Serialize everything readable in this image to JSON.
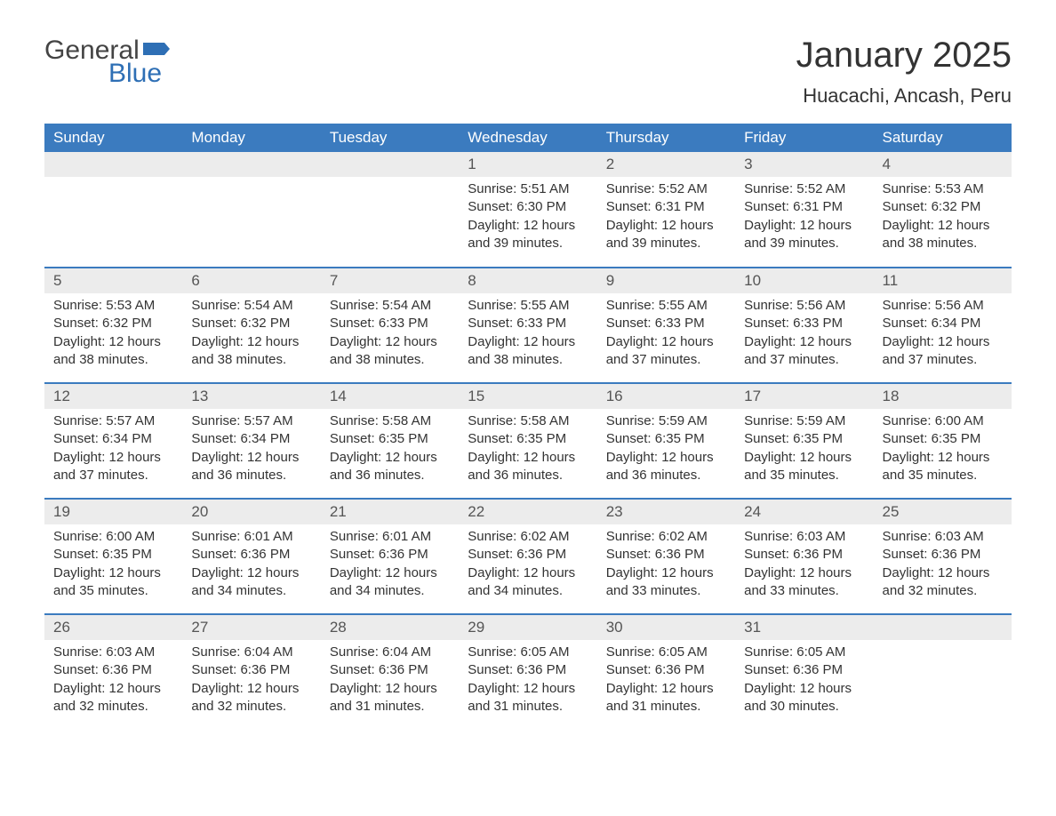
{
  "logo": {
    "text1": "General",
    "text2": "Blue",
    "flag_color": "#2e6fb5"
  },
  "title": {
    "month": "January 2025",
    "location": "Huacachi, Ancash, Peru"
  },
  "colors": {
    "header_bg": "#3b7bbf",
    "header_text": "#ffffff",
    "daynum_bg": "#ececec",
    "row_border": "#3b7bbf",
    "body_text": "#333333",
    "logo_gray": "#444444",
    "logo_blue": "#2e6fb5"
  },
  "typography": {
    "title_fontsize": 40,
    "location_fontsize": 22,
    "weekday_fontsize": 17,
    "daynum_fontsize": 17,
    "body_fontsize": 15
  },
  "weekdays": [
    "Sunday",
    "Monday",
    "Tuesday",
    "Wednesday",
    "Thursday",
    "Friday",
    "Saturday"
  ],
  "labels": {
    "sunrise": "Sunrise:",
    "sunset": "Sunset:",
    "daylight": "Daylight:"
  },
  "weeks": [
    [
      null,
      null,
      null,
      {
        "n": "1",
        "sunrise": "5:51 AM",
        "sunset": "6:30 PM",
        "daylight": "12 hours and 39 minutes."
      },
      {
        "n": "2",
        "sunrise": "5:52 AM",
        "sunset": "6:31 PM",
        "daylight": "12 hours and 39 minutes."
      },
      {
        "n": "3",
        "sunrise": "5:52 AM",
        "sunset": "6:31 PM",
        "daylight": "12 hours and 39 minutes."
      },
      {
        "n": "4",
        "sunrise": "5:53 AM",
        "sunset": "6:32 PM",
        "daylight": "12 hours and 38 minutes."
      }
    ],
    [
      {
        "n": "5",
        "sunrise": "5:53 AM",
        "sunset": "6:32 PM",
        "daylight": "12 hours and 38 minutes."
      },
      {
        "n": "6",
        "sunrise": "5:54 AM",
        "sunset": "6:32 PM",
        "daylight": "12 hours and 38 minutes."
      },
      {
        "n": "7",
        "sunrise": "5:54 AM",
        "sunset": "6:33 PM",
        "daylight": "12 hours and 38 minutes."
      },
      {
        "n": "8",
        "sunrise": "5:55 AM",
        "sunset": "6:33 PM",
        "daylight": "12 hours and 38 minutes."
      },
      {
        "n": "9",
        "sunrise": "5:55 AM",
        "sunset": "6:33 PM",
        "daylight": "12 hours and 37 minutes."
      },
      {
        "n": "10",
        "sunrise": "5:56 AM",
        "sunset": "6:33 PM",
        "daylight": "12 hours and 37 minutes."
      },
      {
        "n": "11",
        "sunrise": "5:56 AM",
        "sunset": "6:34 PM",
        "daylight": "12 hours and 37 minutes."
      }
    ],
    [
      {
        "n": "12",
        "sunrise": "5:57 AM",
        "sunset": "6:34 PM",
        "daylight": "12 hours and 37 minutes."
      },
      {
        "n": "13",
        "sunrise": "5:57 AM",
        "sunset": "6:34 PM",
        "daylight": "12 hours and 36 minutes."
      },
      {
        "n": "14",
        "sunrise": "5:58 AM",
        "sunset": "6:35 PM",
        "daylight": "12 hours and 36 minutes."
      },
      {
        "n": "15",
        "sunrise": "5:58 AM",
        "sunset": "6:35 PM",
        "daylight": "12 hours and 36 minutes."
      },
      {
        "n": "16",
        "sunrise": "5:59 AM",
        "sunset": "6:35 PM",
        "daylight": "12 hours and 36 minutes."
      },
      {
        "n": "17",
        "sunrise": "5:59 AM",
        "sunset": "6:35 PM",
        "daylight": "12 hours and 35 minutes."
      },
      {
        "n": "18",
        "sunrise": "6:00 AM",
        "sunset": "6:35 PM",
        "daylight": "12 hours and 35 minutes."
      }
    ],
    [
      {
        "n": "19",
        "sunrise": "6:00 AM",
        "sunset": "6:35 PM",
        "daylight": "12 hours and 35 minutes."
      },
      {
        "n": "20",
        "sunrise": "6:01 AM",
        "sunset": "6:36 PM",
        "daylight": "12 hours and 34 minutes."
      },
      {
        "n": "21",
        "sunrise": "6:01 AM",
        "sunset": "6:36 PM",
        "daylight": "12 hours and 34 minutes."
      },
      {
        "n": "22",
        "sunrise": "6:02 AM",
        "sunset": "6:36 PM",
        "daylight": "12 hours and 34 minutes."
      },
      {
        "n": "23",
        "sunrise": "6:02 AM",
        "sunset": "6:36 PM",
        "daylight": "12 hours and 33 minutes."
      },
      {
        "n": "24",
        "sunrise": "6:03 AM",
        "sunset": "6:36 PM",
        "daylight": "12 hours and 33 minutes."
      },
      {
        "n": "25",
        "sunrise": "6:03 AM",
        "sunset": "6:36 PM",
        "daylight": "12 hours and 32 minutes."
      }
    ],
    [
      {
        "n": "26",
        "sunrise": "6:03 AM",
        "sunset": "6:36 PM",
        "daylight": "12 hours and 32 minutes."
      },
      {
        "n": "27",
        "sunrise": "6:04 AM",
        "sunset": "6:36 PM",
        "daylight": "12 hours and 32 minutes."
      },
      {
        "n": "28",
        "sunrise": "6:04 AM",
        "sunset": "6:36 PM",
        "daylight": "12 hours and 31 minutes."
      },
      {
        "n": "29",
        "sunrise": "6:05 AM",
        "sunset": "6:36 PM",
        "daylight": "12 hours and 31 minutes."
      },
      {
        "n": "30",
        "sunrise": "6:05 AM",
        "sunset": "6:36 PM",
        "daylight": "12 hours and 31 minutes."
      },
      {
        "n": "31",
        "sunrise": "6:05 AM",
        "sunset": "6:36 PM",
        "daylight": "12 hours and 30 minutes."
      },
      null
    ]
  ]
}
